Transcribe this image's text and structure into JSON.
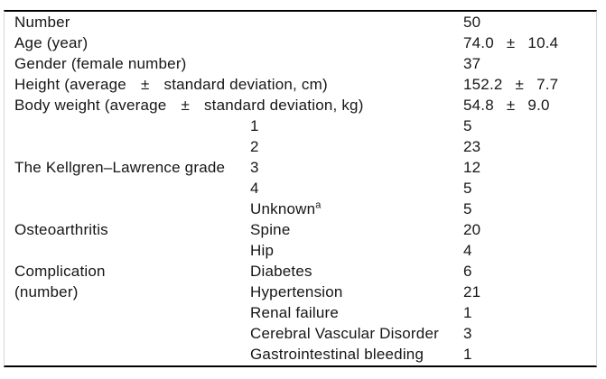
{
  "page": {
    "background": "#ffffff",
    "colors": {
      "text": "#161616",
      "top_bottom_rule": "#000000",
      "side_rule": "#d6d6d6"
    }
  },
  "table": {
    "rows": [
      {
        "c1": "Number",
        "v1": "50"
      },
      {
        "c1": "Age (year)",
        "v1": "74.0",
        "pm": "±",
        "v2": "10.4"
      },
      {
        "c1": "Gender (female number)",
        "v1": "37"
      },
      {
        "c1": "Height (average",
        "c1pm": "±",
        "c1b": "standard deviation, cm)",
        "v1": "152.2",
        "pm": "±",
        "v2": "7.7"
      },
      {
        "c1": "Body weight (average",
        "c1pm": "±",
        "c1b": "standard deviation, kg)",
        "v1": "54.8",
        "pm": "±",
        "v2": "9.0"
      },
      {
        "c2": "1",
        "v1": "5"
      },
      {
        "c2": "2",
        "v1": "23"
      },
      {
        "c1": "The Kellgren–Lawrence grade",
        "c2": "3",
        "v1": "12"
      },
      {
        "c2": "4",
        "v1": "5"
      },
      {
        "c2": "Unknown",
        "c2sup": "a",
        "v1": "5"
      },
      {
        "c1": "Osteoarthritis",
        "c2": "Spine",
        "v1": "20"
      },
      {
        "c2": "Hip",
        "v1": "4"
      },
      {
        "c1": "Complication",
        "c2": "Diabetes",
        "v1": "6"
      },
      {
        "c1": "(number)",
        "c2": "Hypertension",
        "v1": "21"
      },
      {
        "c2": "Renal failure",
        "v1": "1"
      },
      {
        "c2": "Cerebral Vascular Disorder",
        "v1": "3"
      },
      {
        "c2": "Gastrointestinal bleeding",
        "v1": "1"
      }
    ]
  }
}
